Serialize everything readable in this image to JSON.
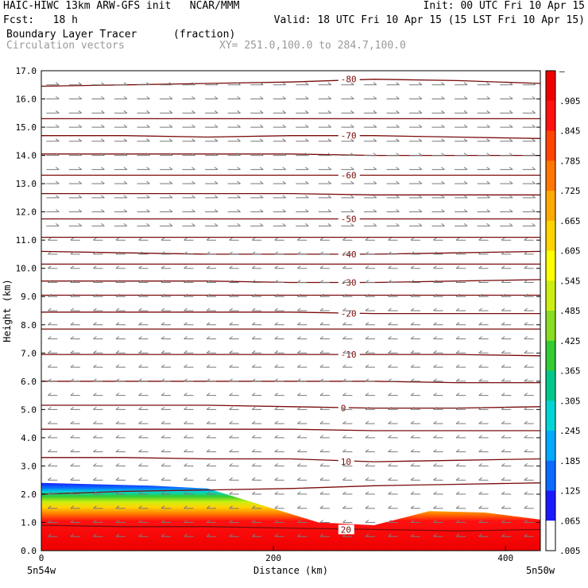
{
  "header": {
    "model_line": "HAIC-HIWC 13km ARW-GFS init   NCAR/MMM",
    "init_line": "Init: 00 UTC Fri 10 Apr 15",
    "fcst_line": "Fcst:   18 h",
    "valid_line": "Valid: 18 UTC Fri 10 Apr 15 (15 LST Fri 10 Apr 15)",
    "field_name": "Boundary Layer Tracer",
    "field_unit": "(fraction)",
    "vector_name": "Circulation vectors",
    "xy_range": "XY= 251.0,100.0 to 284.7,100.0"
  },
  "colors": {
    "contour": "#7a0a0a",
    "vector": "#7a7a7a",
    "tracer_palette": [
      "#ffffff",
      "#1a1aff",
      "#0a6cff",
      "#00aaff",
      "#00d4d4",
      "#00c88c",
      "#33cc33",
      "#88dd22",
      "#ccee11",
      "#ffff00",
      "#ffd400",
      "#ffaa00",
      "#ff7700",
      "#ff4400",
      "#ff1111",
      "#ee0000"
    ]
  },
  "chart_data": {
    "type": "contour",
    "xlabel": "Distance (km)",
    "ylabel": "Height (km)",
    "xlim": [
      0,
      430
    ],
    "ylim": [
      0.0,
      17.0
    ],
    "x_ticks": [
      0,
      200,
      400
    ],
    "y_ticks": [
      "0.0",
      "1.0",
      "2.0",
      "3.0",
      "4.0",
      "5.0",
      "6.0",
      "7.0",
      "8.0",
      "9.0",
      "10.0",
      "11.0",
      "12.0",
      "13.0",
      "14.0",
      "15.0",
      "16.0",
      "17.0"
    ],
    "x_endpoint_labels": [
      "5n54w",
      "5n50w"
    ],
    "colorbar": {
      "ticks": [
        "–",
        ".905",
        ".845",
        ".785",
        ".725",
        ".665",
        ".605",
        ".545",
        ".485",
        ".425",
        ".365",
        ".305",
        ".245",
        ".185",
        ".125",
        ".065",
        ".005"
      ]
    },
    "temperature_contours": [
      {
        "label": "-80",
        "heights": [
          16.45,
          16.5,
          16.55,
          16.6,
          16.7,
          16.65,
          16.55
        ]
      },
      {
        "label": "",
        "heights": [
          15.3,
          15.3,
          15.3,
          15.3,
          15.3,
          15.3,
          15.3
        ]
      },
      {
        "label": "-70",
        "heights": [
          14.7,
          14.7,
          14.65,
          14.7,
          14.7,
          14.65,
          14.6
        ]
      },
      {
        "label": "",
        "heights": [
          14.05,
          14.05,
          14.05,
          14.05,
          14.0,
          14.0,
          14.0
        ]
      },
      {
        "label": "-60",
        "heights": [
          13.3,
          13.3,
          13.3,
          13.3,
          13.3,
          13.3,
          13.3
        ]
      },
      {
        "label": "",
        "heights": [
          12.65,
          12.65,
          12.65,
          12.65,
          12.6,
          12.6,
          12.6
        ]
      },
      {
        "label": "-50",
        "heights": [
          11.75,
          11.75,
          11.75,
          11.75,
          11.75,
          11.75,
          11.75
        ]
      },
      {
        "label": "",
        "heights": [
          11.1,
          11.1,
          11.1,
          11.1,
          11.1,
          11.1,
          11.1
        ]
      },
      {
        "label": "-40",
        "heights": [
          10.6,
          10.55,
          10.5,
          10.5,
          10.5,
          10.55,
          10.6
        ]
      },
      {
        "label": "",
        "heights": [
          10.15,
          10.15,
          10.15,
          10.15,
          10.15,
          10.15,
          10.15
        ]
      },
      {
        "label": "-30",
        "heights": [
          9.55,
          9.55,
          9.55,
          9.5,
          9.5,
          9.55,
          9.6
        ]
      },
      {
        "label": "",
        "heights": [
          9.05,
          9.05,
          9.05,
          9.05,
          9.05,
          9.05,
          9.05
        ]
      },
      {
        "label": "-20",
        "heights": [
          8.45,
          8.45,
          8.45,
          8.45,
          8.4,
          8.4,
          8.4
        ]
      },
      {
        "label": "",
        "heights": [
          7.85,
          7.85,
          7.85,
          7.85,
          7.85,
          7.85,
          7.85
        ]
      },
      {
        "label": "-10",
        "heights": [
          6.95,
          6.95,
          6.95,
          6.95,
          6.95,
          6.95,
          6.9
        ]
      },
      {
        "label": "",
        "heights": [
          6.0,
          6.0,
          6.0,
          6.0,
          6.0,
          5.95,
          5.95
        ]
      },
      {
        "label": "0",
        "heights": [
          5.15,
          5.15,
          5.15,
          5.1,
          5.05,
          5.05,
          5.1
        ]
      },
      {
        "label": "",
        "heights": [
          4.3,
          4.3,
          4.3,
          4.3,
          4.25,
          4.25,
          4.25
        ]
      },
      {
        "label": "10",
        "heights": [
          3.3,
          3.3,
          3.25,
          3.25,
          3.15,
          3.2,
          3.25
        ]
      },
      {
        "label": "",
        "heights": [
          2.0,
          2.1,
          2.15,
          2.2,
          2.3,
          2.35,
          2.4
        ]
      },
      {
        "label": "20",
        "heights": [
          0.9,
          0.85,
          0.85,
          0.8,
          0.75,
          0.7,
          0.75
        ]
      }
    ],
    "boundary_layer_top_km": [
      2.4,
      2.35,
      2.3,
      2.2,
      1.6,
      1.0,
      0.9,
      1.4,
      1.35,
      1.1
    ],
    "wind_field": {
      "upper_direction": "eastward",
      "lower_direction": "westward",
      "reversal_height_km": 11.0
    }
  }
}
